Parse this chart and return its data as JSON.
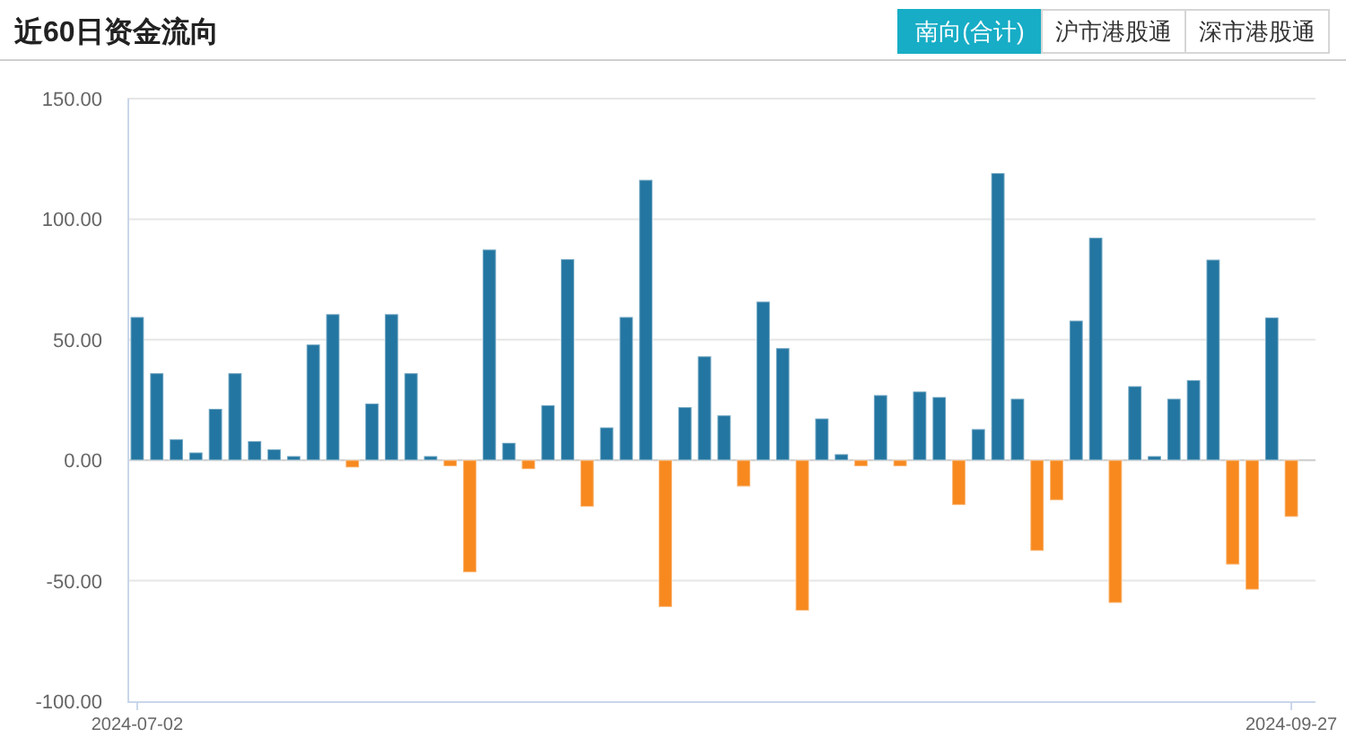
{
  "chart_data": {
    "type": "bar",
    "title": "近60日资金流向",
    "annotations": [
      "南向(合计)",
      "沪市港股通",
      "深市港股通"
    ],
    "categories": [
      "2024-07-02",
      null,
      null,
      null,
      null,
      null,
      null,
      null,
      null,
      null,
      null,
      null,
      null,
      null,
      null,
      null,
      null,
      null,
      null,
      null,
      null,
      null,
      null,
      null,
      null,
      null,
      null,
      null,
      null,
      null,
      null,
      null,
      null,
      null,
      null,
      null,
      null,
      null,
      null,
      null,
      null,
      null,
      null,
      null,
      null,
      null,
      null,
      null,
      null,
      null,
      null,
      null,
      null,
      null,
      null,
      null,
      null,
      null,
      null,
      "2024-09-27"
    ],
    "values": [
      59.4,
      36.1,
      8.7,
      3.2,
      21.3,
      36.1,
      7.9,
      4.5,
      1.7,
      48.0,
      60.6,
      -3.0,
      23.5,
      60.6,
      36.1,
      1.7,
      -2.5,
      -46.5,
      87.4,
      7.2,
      -3.7,
      22.8,
      83.4,
      -19.3,
      13.6,
      59.4,
      116.3,
      -60.9,
      22.0,
      43.1,
      18.6,
      -10.9,
      65.8,
      46.5,
      -62.4,
      17.3,
      2.5,
      -2.5,
      27.0,
      -2.5,
      28.5,
      26.2,
      -18.6,
      12.9,
      119.1,
      25.5,
      -37.6,
      -16.6,
      57.9,
      92.3,
      -59.2,
      30.7,
      1.7,
      25.5,
      33.2,
      83.2,
      -43.3,
      -53.7,
      59.2,
      -23.5
    ],
    "colors": [
      "#2376a1",
      "#2376a1",
      "#2376a1",
      "#2376a1",
      "#2376a1",
      "#2376a1",
      "#2376a1",
      "#2376a1",
      "#2376a1",
      "#2376a1",
      "#2376a1",
      "#f7891f",
      "#2376a1",
      "#2376a1",
      "#2376a1",
      "#2376a1",
      "#f7891f",
      "#f7891f",
      "#2376a1",
      "#2376a1",
      "#f7891f",
      "#2376a1",
      "#2376a1",
      "#f7891f",
      "#2376a1",
      "#2376a1",
      "#2376a1",
      "#f7891f",
      "#2376a1",
      "#2376a1",
      "#2376a1",
      "#f7891f",
      "#2376a1",
      "#2376a1",
      "#f7891f",
      "#2376a1",
      "#2376a1",
      "#f7891f",
      "#2376a1",
      "#f7891f",
      "#2376a1",
      "#2376a1",
      "#f7891f",
      "#2376a1",
      "#2376a1",
      "#2376a1",
      "#f7891f",
      "#f7891f",
      "#2376a1",
      "#2376a1",
      "#f7891f",
      "#2376a1",
      "#2376a1",
      "#2376a1",
      "#2376a1",
      "#2376a1",
      "#f7891f",
      "#f7891f",
      "#2376a1",
      "#f7891f"
    ],
    "ylim": [
      -100,
      150
    ],
    "yticks": [
      {
        "value": -100,
        "label": "-100.00"
      },
      {
        "value": -50,
        "label": "-50.00"
      },
      {
        "value": 0,
        "label": "0.00"
      },
      {
        "value": 50,
        "label": "50.00"
      },
      {
        "value": 100,
        "label": "100.00"
      },
      {
        "value": 150,
        "label": "150.00"
      }
    ],
    "grid": "y"
  }
}
